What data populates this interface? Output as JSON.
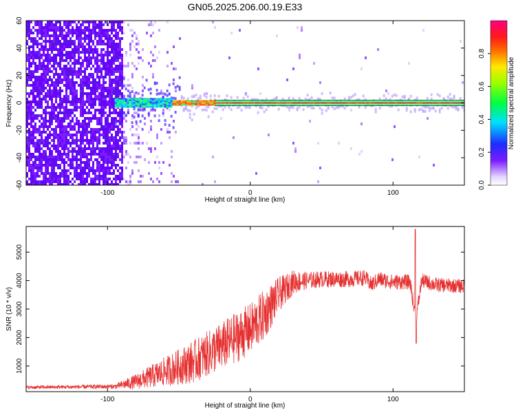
{
  "title": "GN05.2025.206.00.19.E33",
  "chart_data": [
    {
      "type": "heatmap",
      "name": "spectrogram",
      "xlabel": "Height of straight line (km)",
      "ylabel": "Frequency (Hz)",
      "xlim": [
        -157,
        150
      ],
      "ylim": [
        -60,
        60
      ],
      "xticks": [
        -100,
        0,
        100
      ],
      "yticks": [
        -60,
        -40,
        -20,
        0,
        20,
        40,
        60
      ],
      "xtick_labels": [
        "-100",
        "0",
        "100"
      ],
      "ytick_labels": [
        "-60",
        "-40",
        "-20",
        "0",
        "20",
        "40",
        "60"
      ],
      "colorbar": {
        "label": "Normalized spectral amplitude",
        "range": [
          0,
          1
        ],
        "ticks": [
          0.0,
          0.2,
          0.4,
          0.6,
          0.8
        ],
        "tick_labels": [
          "0.0",
          "0.2",
          "0.4",
          "0.6",
          "0.8"
        ]
      },
      "features": {
        "noise_region_x": [
          -157,
          -90
        ],
        "sparse_noise_x": [
          -90,
          -50
        ],
        "carrier_start_x": -95,
        "carrier_freq_hz": 0,
        "carrier_ridge_bounds_hz": [
          -2,
          2
        ]
      },
      "colors": {
        "noise": "#6a00ff",
        "carrier": "#e53030",
        "ridge_line": "#1a5e1a"
      }
    },
    {
      "type": "line",
      "name": "snr",
      "xlabel": "Height of straight line (km)",
      "ylabel": "SNR (10 * v/v)",
      "xlim": [
        -157,
        150
      ],
      "ylim": [
        100,
        5900
      ],
      "xticks": [
        -100,
        0,
        100
      ],
      "yticks": [
        1000,
        2000,
        3000,
        4000,
        5000
      ],
      "xtick_labels": [
        "-100",
        "0",
        "100"
      ],
      "ytick_labels": [
        "1000",
        "2000",
        "3000",
        "4000",
        "5000"
      ],
      "color": "#e53030",
      "trend": {
        "x": [
          -157,
          -95,
          -80,
          -60,
          -40,
          -20,
          0,
          10,
          20,
          30,
          50,
          70,
          80,
          85,
          90,
          100,
          112,
          116,
          120,
          130,
          150
        ],
        "y": [
          250,
          280,
          450,
          800,
          1150,
          1700,
          2300,
          2800,
          3500,
          3950,
          4050,
          4050,
          4100,
          3850,
          4050,
          3950,
          3950,
          2600,
          4000,
          3850,
          3800
        ]
      },
      "noise_amplitude": {
        "x": [
          -157,
          -95,
          -70,
          -40,
          -10,
          10,
          25,
          40,
          150
        ],
        "y": [
          60,
          80,
          400,
          750,
          900,
          900,
          500,
          300,
          250
        ]
      },
      "spikes": [
        {
          "x": 115.6,
          "y": 5800
        },
        {
          "x": 116.2,
          "y": 1800
        }
      ]
    }
  ]
}
